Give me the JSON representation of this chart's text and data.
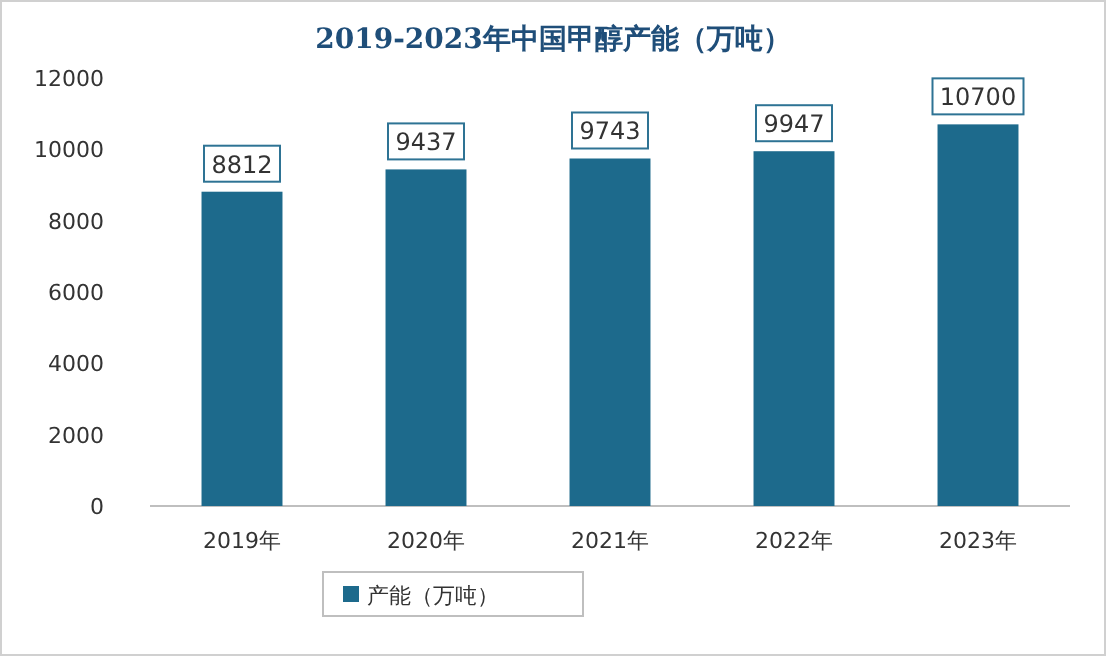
{
  "chart_data": {
    "type": "bar",
    "title": "2019-2023年中国甲醇产能（万吨）",
    "categories": [
      "2019年",
      "2020年",
      "2021年",
      "2022年",
      "2023年"
    ],
    "series": [
      {
        "name": "产能（万吨）",
        "color": "#1d6a8c",
        "values": [
          8812,
          9437,
          9743,
          9947,
          10700
        ]
      }
    ],
    "ylim": [
      0,
      12000
    ],
    "yticks": [
      0,
      2000,
      4000,
      6000,
      8000,
      10000,
      12000
    ],
    "data_labels": true,
    "legend": "bottom",
    "grid": false
  }
}
